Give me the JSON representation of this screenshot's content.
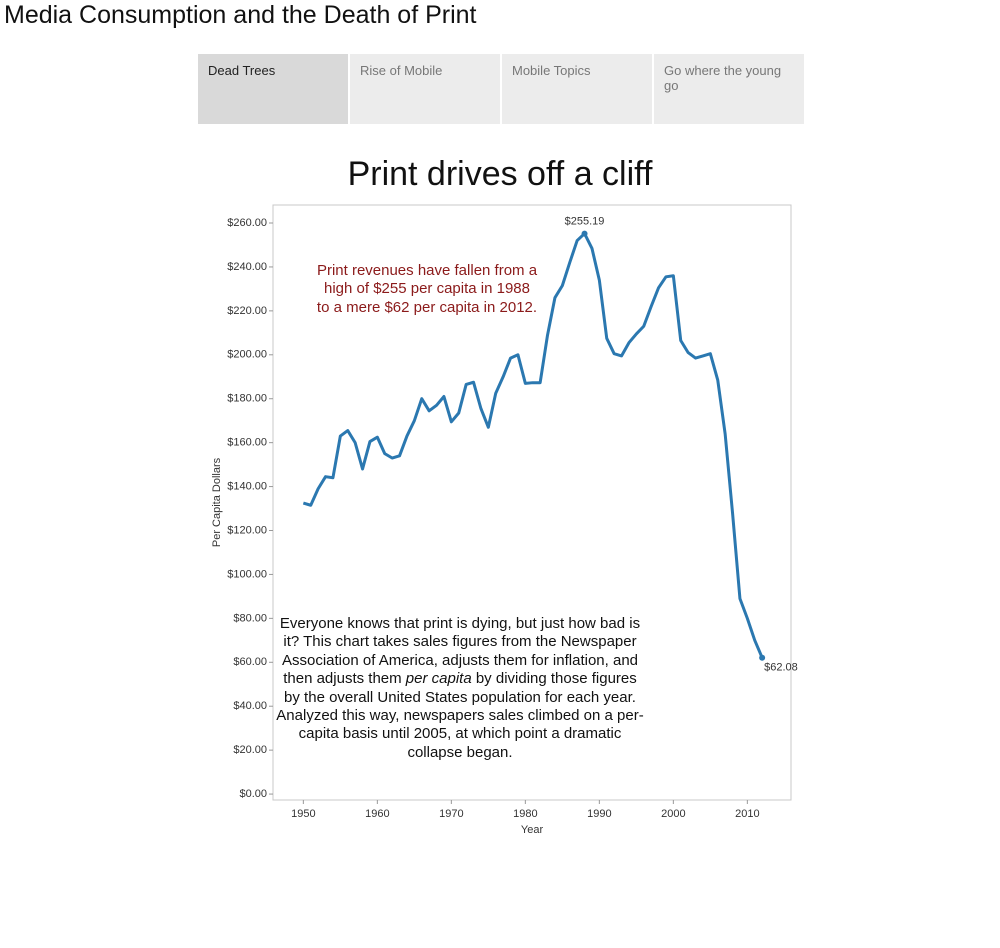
{
  "page_title": "Media Consumption and the Death of Print",
  "tabs": [
    "Dead Trees",
    "Rise of Mobile",
    "Mobile Topics",
    "Go where the young go"
  ],
  "active_tab": 0,
  "chart_data": {
    "type": "line",
    "title": "Print drives off a cliff",
    "x_label": "Year",
    "y_label": "Per Capita Dollars",
    "x": [
      1950,
      1951,
      1952,
      1953,
      1954,
      1955,
      1956,
      1957,
      1958,
      1959,
      1960,
      1961,
      1962,
      1963,
      1964,
      1965,
      1966,
      1967,
      1968,
      1969,
      1970,
      1971,
      1972,
      1973,
      1974,
      1975,
      1976,
      1977,
      1978,
      1979,
      1980,
      1981,
      1982,
      1983,
      1984,
      1985,
      1986,
      1987,
      1988,
      1989,
      1990,
      1991,
      1992,
      1993,
      1994,
      1995,
      1996,
      1997,
      1998,
      1999,
      2000,
      2001,
      2002,
      2003,
      2004,
      2005,
      2006,
      2007,
      2008,
      2009,
      2010,
      2011,
      2012
    ],
    "values": [
      132.5,
      131.5,
      139,
      144.5,
      144,
      163,
      165.5,
      160,
      148,
      160.5,
      162.5,
      155,
      153,
      154,
      163,
      170,
      180,
      174.5,
      177,
      181,
      169.5,
      173.5,
      186.5,
      187.5,
      175.5,
      167,
      182.5,
      190,
      198.5,
      200,
      187,
      187.3,
      187.3,
      209,
      226,
      231.5,
      242,
      252,
      255.19,
      248.5,
      234,
      207.5,
      200.5,
      199.5,
      205.5,
      209.5,
      213,
      222,
      230.5,
      235.5,
      236,
      206.5,
      201,
      198.5,
      199.5,
      200.5,
      188.5,
      164,
      128,
      89,
      80,
      70,
      62.08
    ],
    "value_labels": [
      null,
      null,
      null,
      null,
      null,
      null,
      null,
      null,
      null,
      null,
      null,
      null,
      null,
      null,
      null,
      null,
      null,
      null,
      null,
      null,
      null,
      null,
      null,
      null,
      null,
      null,
      null,
      null,
      null,
      null,
      null,
      null,
      null,
      null,
      null,
      null,
      null,
      null,
      "$255.19",
      null,
      null,
      null,
      null,
      null,
      null,
      null,
      null,
      null,
      null,
      null,
      null,
      null,
      null,
      null,
      null,
      null,
      null,
      null,
      null,
      null,
      null,
      null,
      "$62.08"
    ],
    "color": "#2b78b0",
    "xlim": [
      1945.9,
      2015.9
    ],
    "ylim": [
      -2.7,
      268.2
    ],
    "xticks": [
      1950,
      1960,
      1970,
      1980,
      1990,
      2000,
      2010
    ],
    "yticks": [
      {
        "value": 0,
        "label": "$0.00"
      },
      {
        "value": 20,
        "label": "$20.00"
      },
      {
        "value": 40,
        "label": "$40.00"
      },
      {
        "value": 60,
        "label": "$60.00"
      },
      {
        "value": 80,
        "label": "$80.00"
      },
      {
        "value": 100,
        "label": "$100.00"
      },
      {
        "value": 120,
        "label": "$120.00"
      },
      {
        "value": 140,
        "label": "$140.00"
      },
      {
        "value": 160,
        "label": "$160.00"
      },
      {
        "value": 180,
        "label": "$180.00"
      },
      {
        "value": 200,
        "label": "$200.00"
      },
      {
        "value": 220,
        "label": "$220.00"
      },
      {
        "value": 240,
        "label": "$240.00"
      },
      {
        "value": 260,
        "label": "$260.00"
      }
    ],
    "grid": false,
    "annotations": [
      {
        "color": "#8b1a1a",
        "parts": [
          {
            "text": "Print revenues have fallen from a high of $255 per capita in 1988 to a mere $62 per capita in 2012.",
            "italic": false
          }
        ]
      },
      {
        "color": "#111111",
        "parts": [
          {
            "text": "Everyone knows that print is dying, but just how bad is it? This chart takes sales figures from the Newspaper Association of America, adjusts them for inflation, and then adjusts them ",
            "italic": false
          },
          {
            "text": "per capita",
            "italic": true
          },
          {
            "text": " by dividing those figures by the overall United States population for each year. Analyzed this way, newspapers sales climbed on a per-capita basis until 2005, at which point a dramatic collapse began.",
            "italic": false
          }
        ]
      }
    ]
  }
}
